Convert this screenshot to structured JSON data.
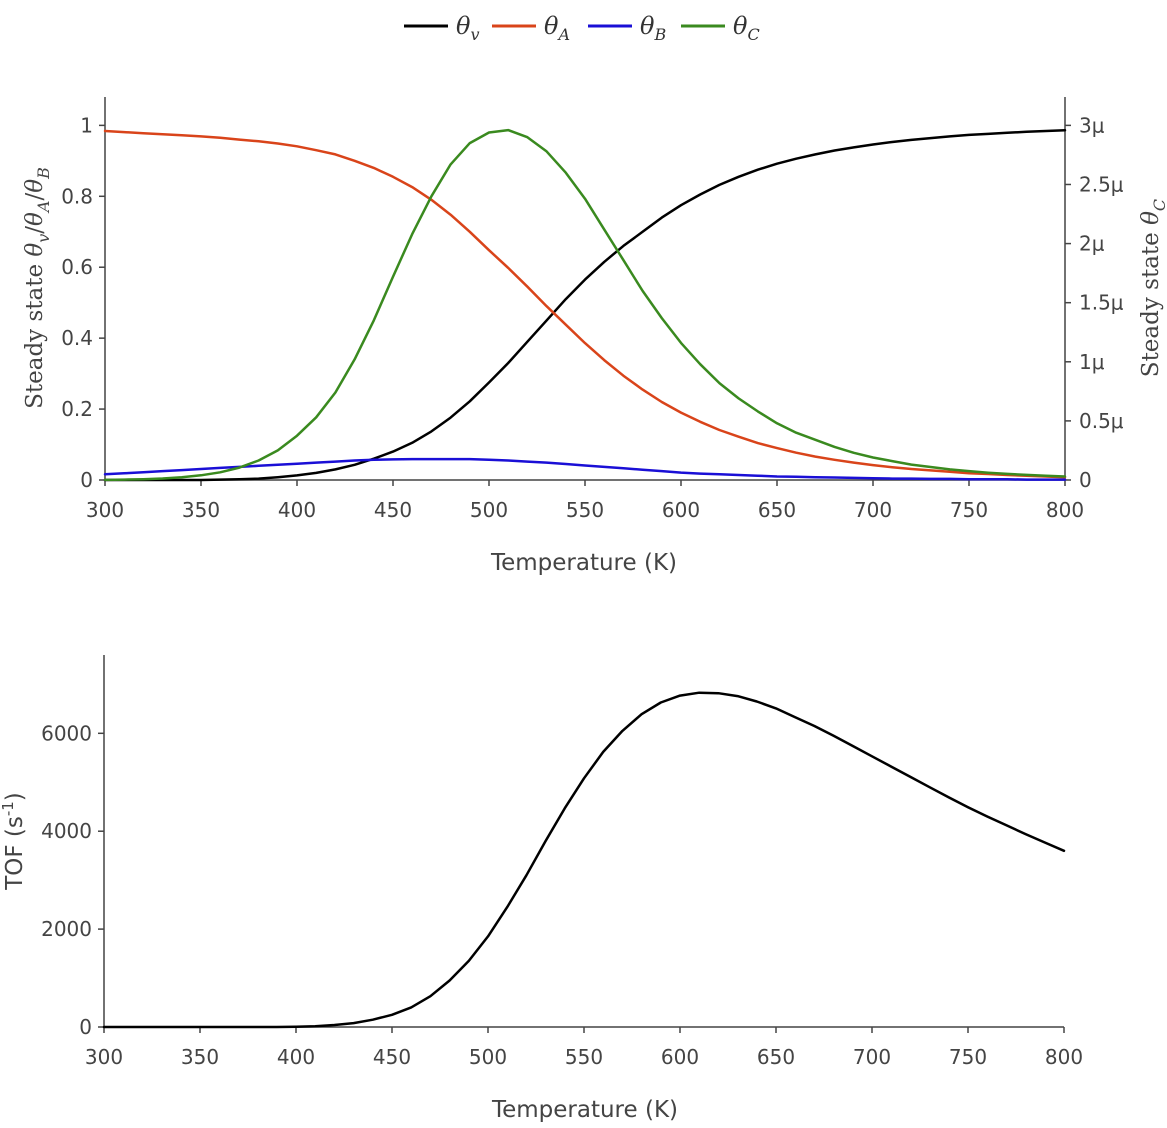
{
  "chart_data": [
    {
      "type": "line",
      "legend": {
        "placement": "top-center",
        "entries": [
          {
            "base": "θ",
            "sub": "v",
            "color": "#000000"
          },
          {
            "base": "θ",
            "sub": "A",
            "color": "#d9441a"
          },
          {
            "base": "θ",
            "sub": "B",
            "color": "#1a0fd6"
          },
          {
            "base": "θ",
            "sub": "C",
            "color": "#3a8a1f"
          }
        ]
      },
      "xlabel": "Temperature (K)",
      "ylabel": "Steady state θv/θA/θB",
      "ylabel2": "Steady state θC",
      "xlim": [
        300,
        800
      ],
      "ylim": [
        0,
        1.08
      ],
      "y2lim": [
        0,
        3.24
      ],
      "xticks": [
        "300",
        "350",
        "400",
        "450",
        "500",
        "550",
        "600",
        "650",
        "700",
        "750",
        "800"
      ],
      "yticks": [
        "0",
        "0.2",
        "0.4",
        "0.6",
        "0.8",
        "1"
      ],
      "y2ticks": [
        "0",
        "0.5μ",
        "1μ",
        "1.5μ",
        "2μ",
        "2.5μ",
        "3μ"
      ],
      "grid": false,
      "x": [
        300,
        310,
        320,
        330,
        340,
        350,
        360,
        370,
        380,
        390,
        400,
        410,
        420,
        430,
        440,
        450,
        460,
        470,
        480,
        490,
        500,
        510,
        520,
        530,
        540,
        550,
        560,
        570,
        580,
        590,
        600,
        610,
        620,
        630,
        640,
        650,
        660,
        670,
        680,
        690,
        700,
        710,
        720,
        730,
        740,
        750,
        760,
        770,
        780,
        790,
        800
      ],
      "series": [
        {
          "name": "θv",
          "axis": "left",
          "color": "#000000",
          "values": [
            0,
            0,
            0,
            0,
            0,
            0,
            0.001,
            0.002,
            0.004,
            0.008,
            0.013,
            0.02,
            0.03,
            0.043,
            0.06,
            0.08,
            0.105,
            0.137,
            0.176,
            0.222,
            0.275,
            0.33,
            0.39,
            0.45,
            0.51,
            0.565,
            0.615,
            0.66,
            0.7,
            0.74,
            0.775,
            0.805,
            0.832,
            0.855,
            0.875,
            0.892,
            0.906,
            0.918,
            0.929,
            0.938,
            0.946,
            0.953,
            0.959,
            0.964,
            0.969,
            0.973,
            0.976,
            0.979,
            0.982,
            0.984,
            0.986
          ]
        },
        {
          "name": "θA",
          "axis": "left",
          "color": "#d9441a",
          "values": [
            0.984,
            0.981,
            0.978,
            0.975,
            0.972,
            0.969,
            0.965,
            0.96,
            0.955,
            0.949,
            0.941,
            0.93,
            0.918,
            0.9,
            0.88,
            0.855,
            0.826,
            0.79,
            0.748,
            0.7,
            0.648,
            0.598,
            0.545,
            0.49,
            0.438,
            0.386,
            0.338,
            0.294,
            0.255,
            0.22,
            0.19,
            0.164,
            0.141,
            0.122,
            0.104,
            0.09,
            0.077,
            0.066,
            0.057,
            0.049,
            0.042,
            0.036,
            0.031,
            0.027,
            0.023,
            0.019,
            0.017,
            0.014,
            0.012,
            0.01,
            0.008
          ]
        },
        {
          "name": "θB",
          "axis": "left",
          "color": "#1a0fd6",
          "values": [
            0.016,
            0.019,
            0.022,
            0.025,
            0.028,
            0.031,
            0.034,
            0.037,
            0.04,
            0.043,
            0.046,
            0.049,
            0.052,
            0.055,
            0.057,
            0.058,
            0.059,
            0.059,
            0.059,
            0.059,
            0.057,
            0.055,
            0.052,
            0.049,
            0.045,
            0.041,
            0.037,
            0.033,
            0.029,
            0.025,
            0.021,
            0.018,
            0.016,
            0.014,
            0.012,
            0.01,
            0.009,
            0.008,
            0.007,
            0.006,
            0.005,
            0.004,
            0.004,
            0.003,
            0.003,
            0.002,
            0.002,
            0.002,
            0.001,
            0.001,
            0.001
          ]
        },
        {
          "name": "θC",
          "axis": "right",
          "color": "#3a8a1f",
          "values": [
            0.001,
            0.003,
            0.007,
            0.013,
            0.023,
            0.04,
            0.065,
            0.105,
            0.165,
            0.25,
            0.375,
            0.53,
            0.74,
            1.02,
            1.35,
            1.72,
            2.08,
            2.4,
            2.67,
            2.85,
            2.94,
            2.96,
            2.9,
            2.78,
            2.6,
            2.38,
            2.12,
            1.86,
            1.6,
            1.37,
            1.16,
            0.98,
            0.82,
            0.69,
            0.58,
            0.48,
            0.4,
            0.34,
            0.28,
            0.23,
            0.19,
            0.16,
            0.13,
            0.11,
            0.09,
            0.075,
            0.062,
            0.052,
            0.043,
            0.036,
            0.03
          ]
        }
      ]
    },
    {
      "type": "line",
      "xlabel": "Temperature (K)",
      "ylabel": "TOF (s-1)",
      "xlim": [
        300,
        800
      ],
      "ylim": [
        0,
        7600
      ],
      "xticks": [
        "300",
        "350",
        "400",
        "450",
        "500",
        "550",
        "600",
        "650",
        "700",
        "750",
        "800"
      ],
      "yticks": [
        "0",
        "2000",
        "4000",
        "6000"
      ],
      "grid": false,
      "x": [
        300,
        310,
        320,
        330,
        340,
        350,
        360,
        370,
        380,
        390,
        400,
        410,
        420,
        430,
        440,
        450,
        460,
        470,
        480,
        490,
        500,
        510,
        520,
        530,
        540,
        550,
        560,
        570,
        580,
        590,
        600,
        610,
        620,
        630,
        640,
        650,
        660,
        670,
        680,
        690,
        700,
        710,
        720,
        730,
        740,
        750,
        760,
        770,
        780,
        790,
        800
      ],
      "series": [
        {
          "name": "TOF",
          "color": "#000000",
          "values": [
            0,
            0,
            0,
            0,
            0,
            0,
            0,
            0,
            0,
            0,
            5,
            15,
            40,
            80,
            150,
            250,
            400,
            630,
            950,
            1350,
            1850,
            2450,
            3100,
            3800,
            4470,
            5080,
            5620,
            6050,
            6390,
            6630,
            6770,
            6830,
            6820,
            6760,
            6650,
            6510,
            6330,
            6150,
            5950,
            5740,
            5530,
            5320,
            5110,
            4900,
            4690,
            4490,
            4300,
            4120,
            3940,
            3770,
            3600
          ]
        }
      ]
    }
  ]
}
